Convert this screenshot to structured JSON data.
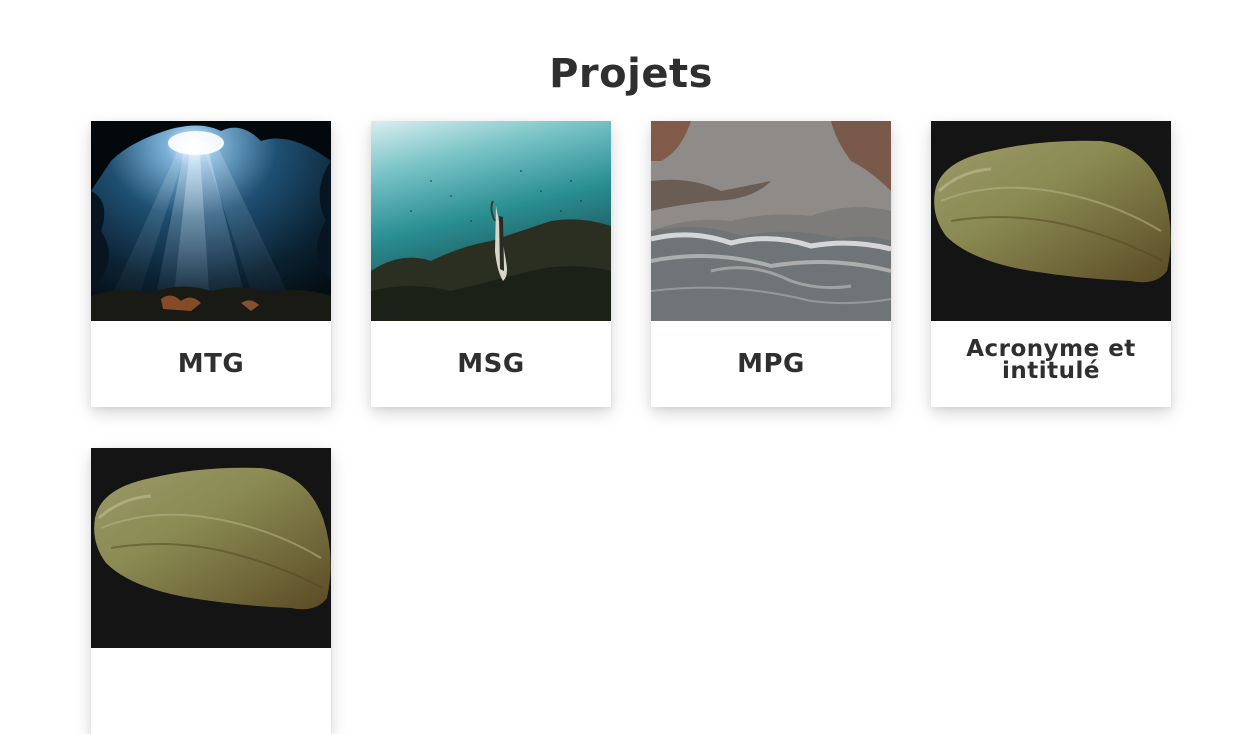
{
  "page": {
    "title": "Projets"
  },
  "projects": [
    {
      "label": "MTG",
      "image": "underwater-cave-light-rays"
    },
    {
      "label": "MSG",
      "image": "underwater-fish-seagrass"
    },
    {
      "label": "MPG",
      "image": "aerial-beach-shoreline"
    },
    {
      "label": "Acronyme et intitulé",
      "image": "green-mussel-shell"
    },
    {
      "label": "",
      "image": "green-mussel-shell"
    }
  ]
}
